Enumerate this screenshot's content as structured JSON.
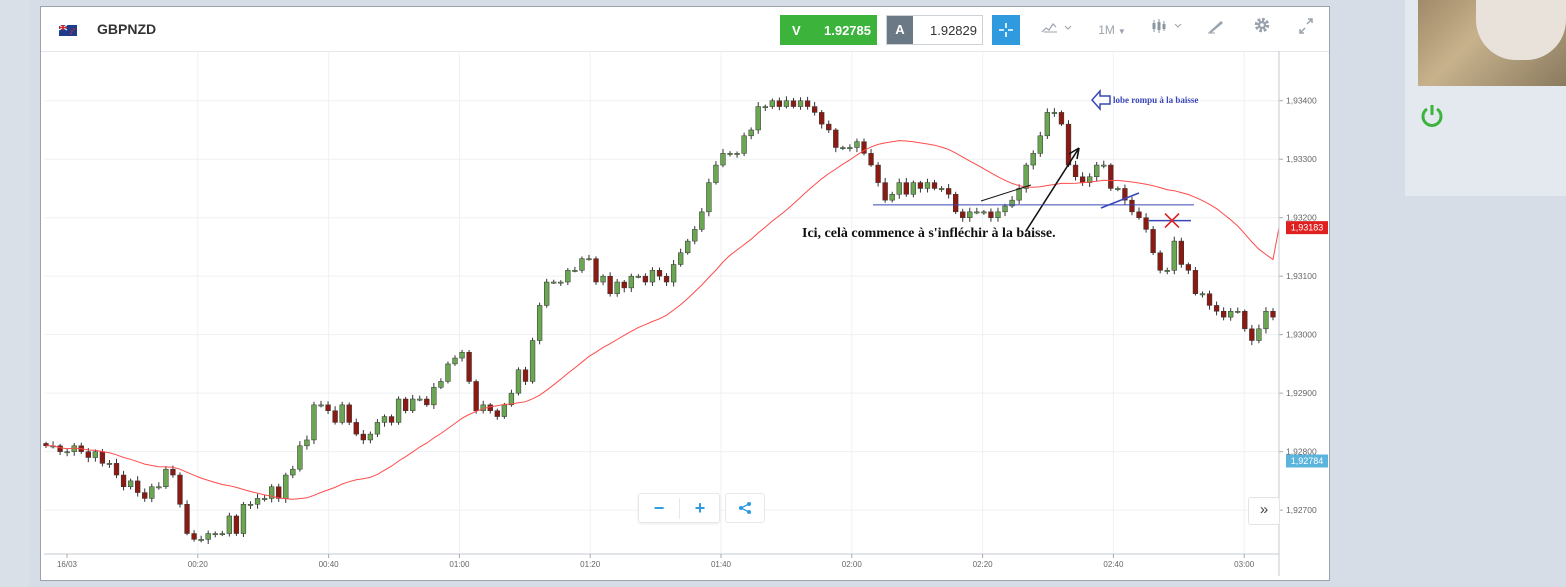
{
  "instrument": {
    "symbol": "GBPNZD",
    "flag_icon": "uk-nz-flag-icon"
  },
  "quote": {
    "sell_label": "V",
    "sell_price": "1.92785",
    "buy_label": "A",
    "buy_price": "1.92829",
    "sell_color": "#3cb43c"
  },
  "toolbar": {
    "timeframe": "1M",
    "icons": [
      "crosshair-icon",
      "chart-type-icon",
      "candle-settings-icon",
      "drawing-tools-icon",
      "settings-icon",
      "fullscreen-icon"
    ]
  },
  "controls": {
    "zoom_out": "−",
    "zoom_in": "+",
    "next_label": "»"
  },
  "colors": {
    "bull": "#6ba653",
    "bear": "#8b1a12",
    "ma": "#ff4b4b",
    "price_tag": "#e02020",
    "bid_tag": "#5ab4dc",
    "annotation_blue": "#3946b8"
  },
  "chart_data": {
    "type": "candlestick",
    "y_ticks": [
      "1,93400",
      "1,93300",
      "1,93200",
      "1,93100",
      "1,93000",
      "1,92900",
      "1,92800",
      "1,92700"
    ],
    "y_range": [
      1.92625,
      1.93485
    ],
    "x_ticks": [
      "16/03",
      "00:20",
      "00:40",
      "01:00",
      "01:20",
      "01:40",
      "02:00",
      "02:20",
      "02:40",
      "03:00"
    ],
    "price_tag_red": "1,93183",
    "price_tag_blue": "1,92784",
    "horizontal_line_level": 1.93222,
    "red_cross_level": 1.93195,
    "closes": [
      1.9281,
      1.9281,
      1.928,
      1.928,
      1.9281,
      1.928,
      1.9279,
      1.928,
      1.9278,
      1.9278,
      1.9276,
      1.9274,
      1.9275,
      1.9273,
      1.9272,
      1.9274,
      1.9274,
      1.9277,
      1.9276,
      1.9271,
      1.9266,
      1.9265,
      1.9265,
      1.9266,
      1.9266,
      1.9266,
      1.9269,
      1.9266,
      1.9271,
      1.9271,
      1.9272,
      1.9272,
      1.9274,
      1.9272,
      1.9276,
      1.9277,
      1.9281,
      1.9282,
      1.9288,
      1.9288,
      1.9287,
      1.9285,
      1.9288,
      1.9285,
      1.9283,
      1.9282,
      1.9283,
      1.9285,
      1.9286,
      1.9285,
      1.9289,
      1.9287,
      1.9289,
      1.9289,
      1.9288,
      1.9291,
      1.9292,
      1.9295,
      1.9296,
      1.9297,
      1.9292,
      1.9287,
      1.9288,
      1.9287,
      1.9286,
      1.9288,
      1.929,
      1.9294,
      1.9292,
      1.9299,
      1.9305,
      1.9309,
      1.9309,
      1.9309,
      1.9311,
      1.9311,
      1.9313,
      1.9313,
      1.9309,
      1.931,
      1.9307,
      1.9309,
      1.9308,
      1.931,
      1.931,
      1.9309,
      1.9311,
      1.931,
      1.9309,
      1.9312,
      1.9314,
      1.9316,
      1.9318,
      1.9321,
      1.9326,
      1.9329,
      1.9331,
      1.9331,
      1.9331,
      1.9334,
      1.9335,
      1.9339,
      1.9339,
      1.934,
      1.9339,
      1.934,
      1.9339,
      1.934,
      1.9339,
      1.9338,
      1.9336,
      1.9335,
      1.9332,
      1.9332,
      1.9332,
      1.9333,
      1.9331,
      1.9329,
      1.9326,
      1.9323,
      1.9324,
      1.9326,
      1.9324,
      1.9326,
      1.9325,
      1.9326,
      1.9325,
      1.9325,
      1.9324,
      1.9321,
      1.932,
      1.9321,
      1.9321,
      1.9321,
      1.932,
      1.9321,
      1.9322,
      1.9323,
      1.9325,
      1.9329,
      1.9331,
      1.9334,
      1.9338,
      1.9338,
      1.9336,
      1.9329,
      1.9327,
      1.9326,
      1.9327,
      1.9329,
      1.9329,
      1.9325,
      1.9325,
      1.9323,
      1.9321,
      1.932,
      1.9318,
      1.9314,
      1.9311,
      1.9311,
      1.9316,
      1.9312,
      1.9311,
      1.9307,
      1.9307,
      1.9305,
      1.9304,
      1.9303,
      1.9304,
      1.9304,
      1.9301,
      1.9299,
      1.9301,
      1.9304,
      1.9303
    ]
  }
}
